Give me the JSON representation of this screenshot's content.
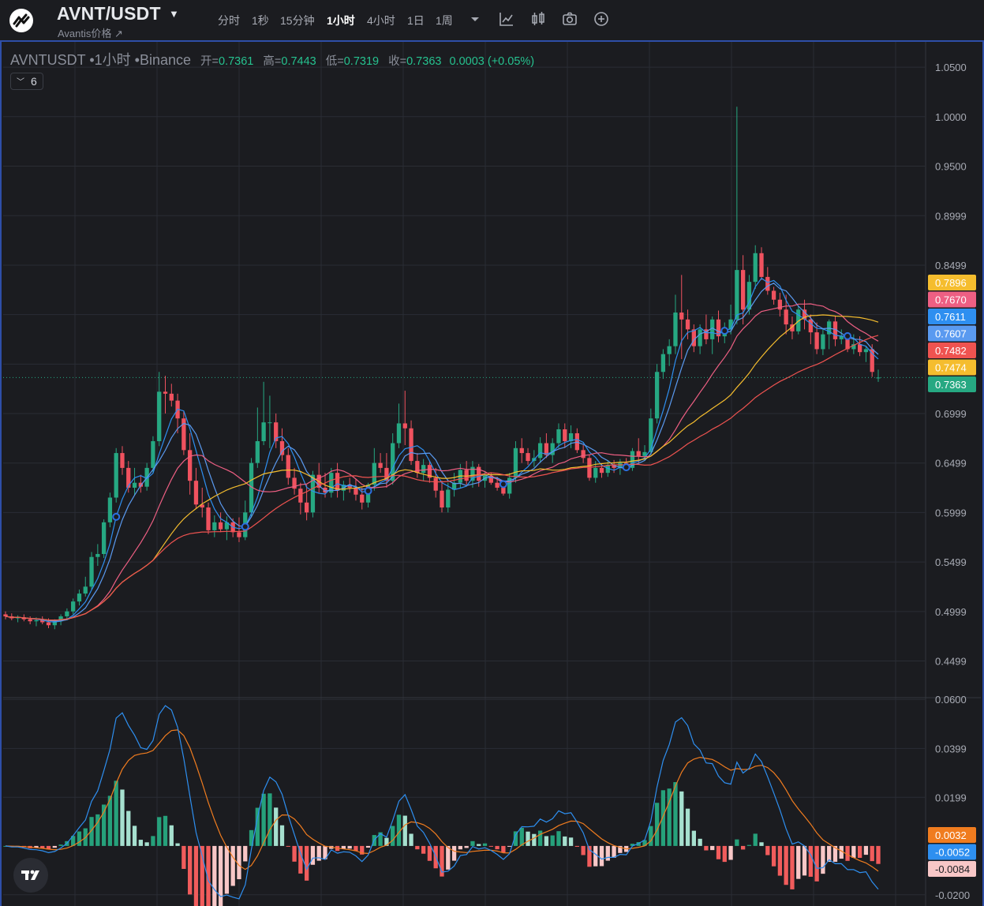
{
  "header": {
    "symbol": "AVNT/USDT",
    "subtitle": "Avantis价格 ↗",
    "timeframes": [
      {
        "label": "分时",
        "active": false
      },
      {
        "label": "1秒",
        "active": false
      },
      {
        "label": "15分钟",
        "active": false
      },
      {
        "label": "1小时",
        "active": true
      },
      {
        "label": "4小时",
        "active": false
      },
      {
        "label": "1日",
        "active": false
      },
      {
        "label": "1周",
        "active": false
      }
    ],
    "toolbar_icons": [
      "chevron-down-icon",
      "line-chart-icon",
      "candlestick-icon",
      "camera-icon",
      "plus-circle-icon"
    ]
  },
  "legend": {
    "symbol_line": "AVNTUSDT •1小时 •Binance",
    "open_label": "开=",
    "open": "0.7361",
    "high_label": "高=",
    "high": "0.7443",
    "low_label": "低=",
    "low": "0.7319",
    "close_label": "收=",
    "close": "0.7363",
    "change": "0.0003 (+0.05%)",
    "indicator_count": "6"
  },
  "colors": {
    "background": "#1b1c20",
    "up": "#26a882",
    "down": "#f0525f",
    "ma_fast": "#2e8ff0",
    "ma_mid_blue": "#5a9af0",
    "ma_yellow": "#f5bd2e",
    "ma_pink": "#ee5f83",
    "ma_red": "#ef5350",
    "macd_line": "#2e8ff0",
    "signal_line": "#f07c1f",
    "hist_up_strong": "#26a17b",
    "hist_up_weak": "#a6e0cf",
    "hist_down_strong": "#f15c5c",
    "hist_down_weak": "#f8c7c7"
  },
  "chart_data": [
    {
      "type": "candlestick",
      "panel": "price",
      "price_axis_ticks": [
        "1.0500",
        "1.0000",
        "0.9500",
        "0.8999",
        "0.8499",
        "0.7999",
        "0.7499",
        "0.6999",
        "0.6499",
        "0.5999",
        "0.5499",
        "0.4999",
        "0.4499"
      ],
      "y_range": [
        0.42,
        1.07
      ],
      "last_price": 0.7363,
      "price_badges": [
        {
          "value": "0.7896",
          "color": "#f5bd2e"
        },
        {
          "value": "0.7670",
          "color": "#ee5f83"
        },
        {
          "value": "0.7611",
          "color": "#2e8ff0"
        },
        {
          "value": "0.7607",
          "color": "#5a9af0"
        },
        {
          "value": "0.7482",
          "color": "#ef5350"
        },
        {
          "value": "0.7474",
          "color": "#f5bd2e"
        },
        {
          "value": "0.7363",
          "color": "#26a882"
        }
      ],
      "candles": [
        [
          0.497,
          0.5,
          0.492,
          0.495
        ],
        [
          0.495,
          0.498,
          0.491,
          0.493
        ],
        [
          0.493,
          0.496,
          0.489,
          0.494
        ],
        [
          0.494,
          0.497,
          0.49,
          0.492
        ],
        [
          0.492,
          0.495,
          0.487,
          0.49
        ],
        [
          0.49,
          0.494,
          0.485,
          0.491
        ],
        [
          0.491,
          0.495,
          0.487,
          0.489
        ],
        [
          0.489,
          0.493,
          0.483,
          0.486
        ],
        [
          0.486,
          0.492,
          0.482,
          0.49
        ],
        [
          0.49,
          0.497,
          0.486,
          0.495
        ],
        [
          0.495,
          0.503,
          0.492,
          0.5
        ],
        [
          0.5,
          0.513,
          0.497,
          0.51
        ],
        [
          0.51,
          0.522,
          0.506,
          0.518
        ],
        [
          0.518,
          0.535,
          0.515,
          0.525
        ],
        [
          0.525,
          0.56,
          0.522,
          0.555
        ],
        [
          0.555,
          0.568,
          0.546,
          0.558
        ],
        [
          0.558,
          0.593,
          0.554,
          0.59
        ],
        [
          0.59,
          0.62,
          0.585,
          0.615
        ],
        [
          0.615,
          0.665,
          0.61,
          0.66
        ],
        [
          0.66,
          0.667,
          0.638,
          0.645
        ],
        [
          0.645,
          0.652,
          0.62,
          0.625
        ],
        [
          0.625,
          0.645,
          0.618,
          0.63
        ],
        [
          0.63,
          0.638,
          0.62,
          0.626
        ],
        [
          0.626,
          0.65,
          0.622,
          0.645
        ],
        [
          0.645,
          0.677,
          0.64,
          0.672
        ],
        [
          0.672,
          0.742,
          0.667,
          0.722
        ],
        [
          0.722,
          0.738,
          0.7,
          0.72
        ],
        [
          0.72,
          0.73,
          0.707,
          0.713
        ],
        [
          0.713,
          0.72,
          0.68,
          0.695
        ],
        [
          0.695,
          0.702,
          0.658,
          0.663
        ],
        [
          0.663,
          0.68,
          0.618,
          0.632
        ],
        [
          0.632,
          0.645,
          0.604,
          0.608
        ],
        [
          0.608,
          0.625,
          0.595,
          0.605
        ],
        [
          0.605,
          0.61,
          0.578,
          0.582
        ],
        [
          0.582,
          0.597,
          0.575,
          0.59
        ],
        [
          0.59,
          0.6,
          0.58,
          0.583
        ],
        [
          0.583,
          0.596,
          0.572,
          0.59
        ],
        [
          0.59,
          0.594,
          0.575,
          0.58
        ],
        [
          0.58,
          0.595,
          0.57,
          0.575
        ],
        [
          0.575,
          0.612,
          0.572,
          0.6
        ],
        [
          0.6,
          0.655,
          0.595,
          0.65
        ],
        [
          0.65,
          0.706,
          0.645,
          0.672
        ],
        [
          0.672,
          0.732,
          0.668,
          0.691
        ],
        [
          0.691,
          0.718,
          0.665,
          0.691
        ],
        [
          0.691,
          0.7,
          0.665,
          0.672
        ],
        [
          0.672,
          0.685,
          0.652,
          0.658
        ],
        [
          0.658,
          0.665,
          0.628,
          0.635
        ],
        [
          0.635,
          0.645,
          0.618,
          0.624
        ],
        [
          0.624,
          0.63,
          0.598,
          0.61
        ],
        [
          0.61,
          0.628,
          0.592,
          0.6
        ],
        [
          0.6,
          0.642,
          0.595,
          0.638
        ],
        [
          0.638,
          0.65,
          0.62,
          0.625
        ],
        [
          0.625,
          0.64,
          0.615,
          0.62
        ],
        [
          0.62,
          0.645,
          0.615,
          0.64
        ],
        [
          0.64,
          0.65,
          0.615,
          0.622
        ],
        [
          0.622,
          0.632,
          0.612,
          0.628
        ],
        [
          0.628,
          0.635,
          0.62,
          0.625
        ],
        [
          0.625,
          0.634,
          0.612,
          0.618
        ],
        [
          0.618,
          0.625,
          0.603,
          0.61
        ],
        [
          0.61,
          0.63,
          0.605,
          0.628
        ],
        [
          0.628,
          0.665,
          0.622,
          0.65
        ],
        [
          0.65,
          0.66,
          0.64,
          0.645
        ],
        [
          0.645,
          0.66,
          0.625,
          0.632
        ],
        [
          0.632,
          0.68,
          0.628,
          0.67
        ],
        [
          0.67,
          0.71,
          0.665,
          0.69
        ],
        [
          0.69,
          0.723,
          0.668,
          0.685
        ],
        [
          0.685,
          0.693,
          0.648,
          0.652
        ],
        [
          0.652,
          0.66,
          0.635,
          0.64
        ],
        [
          0.64,
          0.654,
          0.632,
          0.648
        ],
        [
          0.648,
          0.652,
          0.63,
          0.635
        ],
        [
          0.635,
          0.645,
          0.615,
          0.622
        ],
        [
          0.622,
          0.632,
          0.6,
          0.605
        ],
        [
          0.605,
          0.63,
          0.6,
          0.623
        ],
        [
          0.623,
          0.64,
          0.616,
          0.63
        ],
        [
          0.63,
          0.649,
          0.625,
          0.643
        ],
        [
          0.643,
          0.652,
          0.628,
          0.632
        ],
        [
          0.632,
          0.652,
          0.625,
          0.646
        ],
        [
          0.646,
          0.649,
          0.626,
          0.632
        ],
        [
          0.632,
          0.641,
          0.625,
          0.637
        ],
        [
          0.637,
          0.64,
          0.628,
          0.63
        ],
        [
          0.63,
          0.636,
          0.622,
          0.625
        ],
        [
          0.625,
          0.628,
          0.617,
          0.619
        ],
        [
          0.619,
          0.64,
          0.614,
          0.635
        ],
        [
          0.635,
          0.672,
          0.63,
          0.665
        ],
        [
          0.665,
          0.675,
          0.65,
          0.66
        ],
        [
          0.66,
          0.665,
          0.648,
          0.652
        ],
        [
          0.652,
          0.663,
          0.646,
          0.655
        ],
        [
          0.655,
          0.676,
          0.65,
          0.67
        ],
        [
          0.67,
          0.68,
          0.655,
          0.658
        ],
        [
          0.658,
          0.675,
          0.65,
          0.67
        ],
        [
          0.67,
          0.69,
          0.665,
          0.684
        ],
        [
          0.684,
          0.69,
          0.665,
          0.672
        ],
        [
          0.672,
          0.688,
          0.665,
          0.68
        ],
        [
          0.68,
          0.685,
          0.66,
          0.663
        ],
        [
          0.663,
          0.668,
          0.65,
          0.655
        ],
        [
          0.655,
          0.658,
          0.632,
          0.635
        ],
        [
          0.635,
          0.652,
          0.63,
          0.645
        ],
        [
          0.645,
          0.65,
          0.635,
          0.64
        ],
        [
          0.64,
          0.652,
          0.636,
          0.648
        ],
        [
          0.648,
          0.653,
          0.64,
          0.645
        ],
        [
          0.645,
          0.654,
          0.638,
          0.65
        ],
        [
          0.65,
          0.655,
          0.642,
          0.645
        ],
        [
          0.645,
          0.665,
          0.642,
          0.662
        ],
        [
          0.662,
          0.675,
          0.65,
          0.657
        ],
        [
          0.657,
          0.668,
          0.652,
          0.661
        ],
        [
          0.661,
          0.705,
          0.658,
          0.695
        ],
        [
          0.695,
          0.75,
          0.69,
          0.742
        ],
        [
          0.742,
          0.765,
          0.735,
          0.76
        ],
        [
          0.76,
          0.775,
          0.748,
          0.768
        ],
        [
          0.768,
          0.82,
          0.76,
          0.802
        ],
        [
          0.802,
          0.84,
          0.755,
          0.795
        ],
        [
          0.795,
          0.805,
          0.775,
          0.785
        ],
        [
          0.785,
          0.79,
          0.762,
          0.768
        ],
        [
          0.768,
          0.79,
          0.76,
          0.785
        ],
        [
          0.785,
          0.8,
          0.77,
          0.775
        ],
        [
          0.775,
          0.798,
          0.76,
          0.795
        ],
        [
          0.795,
          0.804,
          0.772,
          0.778
        ],
        [
          0.778,
          0.792,
          0.771,
          0.785
        ],
        [
          0.785,
          0.81,
          0.78,
          0.795
        ],
        [
          0.795,
          1.01,
          0.79,
          0.845
        ],
        [
          0.845,
          0.86,
          0.79,
          0.805
        ],
        [
          0.805,
          0.84,
          0.8,
          0.833
        ],
        [
          0.833,
          0.87,
          0.826,
          0.862
        ],
        [
          0.862,
          0.868,
          0.835,
          0.838
        ],
        [
          0.838,
          0.848,
          0.82,
          0.824
        ],
        [
          0.824,
          0.828,
          0.81,
          0.815
        ],
        [
          0.815,
          0.822,
          0.798,
          0.805
        ],
        [
          0.805,
          0.82,
          0.78,
          0.79
        ],
        [
          0.79,
          0.798,
          0.775,
          0.783
        ],
        [
          0.783,
          0.808,
          0.78,
          0.805
        ],
        [
          0.805,
          0.815,
          0.785,
          0.795
        ],
        [
          0.795,
          0.8,
          0.77,
          0.782
        ],
        [
          0.782,
          0.792,
          0.76,
          0.765
        ],
        [
          0.765,
          0.785,
          0.759,
          0.78
        ],
        [
          0.78,
          0.795,
          0.765,
          0.793
        ],
        [
          0.793,
          0.799,
          0.768,
          0.775
        ],
        [
          0.775,
          0.785,
          0.77,
          0.778
        ],
        [
          0.778,
          0.782,
          0.762,
          0.765
        ],
        [
          0.765,
          0.78,
          0.76,
          0.77
        ],
        [
          0.77,
          0.778,
          0.758,
          0.762
        ],
        [
          0.762,
          0.768,
          0.752,
          0.765
        ],
        [
          0.765,
          0.77,
          0.737,
          0.742
        ],
        [
          0.7361,
          0.7443,
          0.7319,
          0.7363
        ]
      ],
      "moving_averages": [
        {
          "period": 5,
          "color": "#2e8ff0"
        },
        {
          "period": 7,
          "color": "#5a9af0"
        },
        {
          "period": 15,
          "color": "#ee5f83"
        },
        {
          "period": 25,
          "color": "#f5bd2e"
        },
        {
          "period": 40,
          "color": "#ef5350"
        }
      ],
      "signal_dots": [
        18,
        39,
        59,
        81,
        101,
        117,
        137
      ]
    },
    {
      "type": "macd",
      "panel": "indicator",
      "axis_ticks": [
        "0.0600",
        "0.0399",
        "0.0199",
        "-0.0200"
      ],
      "y_range": [
        -0.022,
        0.062
      ],
      "badges": [
        {
          "value": "0.0032",
          "color": "#f07c1f",
          "text_color": "#ffffff"
        },
        {
          "value": "-0.0052",
          "color": "#2e8ff0",
          "text_color": "#ffffff"
        },
        {
          "value": "-0.0084",
          "color": "#f8c7c7",
          "text_color": "#1b1c20"
        }
      ],
      "fast": 5,
      "slow": 15,
      "signal": 9
    }
  ]
}
